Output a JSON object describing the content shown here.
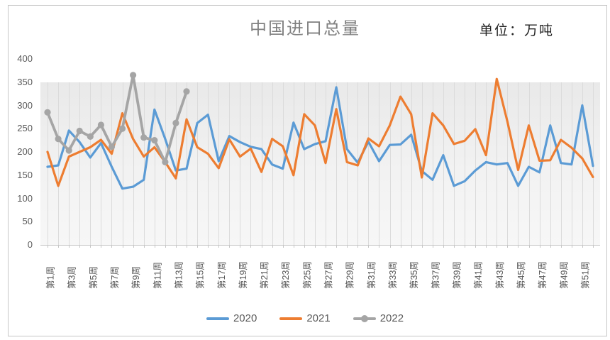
{
  "title": "中国进口总量",
  "unit_label": "单位：万吨",
  "colors": {
    "series_2020": "#5B9BD5",
    "series_2021": "#ED7D31",
    "series_2022": "#A5A5A5",
    "gridline": "#dbdbdb",
    "axis_text": "#595959",
    "title_text": "#808080"
  },
  "legend": [
    {
      "label": "2020",
      "color": "#5B9BD5",
      "marker": false
    },
    {
      "label": "2021",
      "color": "#ED7D31",
      "marker": false
    },
    {
      "label": "2022",
      "color": "#A5A5A5",
      "marker": true
    }
  ],
  "y_axis": {
    "min": 0,
    "max": 400,
    "step": 50,
    "tick_labels": [
      "400",
      "350",
      "300",
      "250",
      "200",
      "150",
      "100",
      "50",
      "0"
    ]
  },
  "x_axis": {
    "weeks_total": 52,
    "tick_labels": [
      "第1周",
      "第3周",
      "第5周",
      "第7周",
      "第9周",
      "第11周",
      "第13周",
      "第15周",
      "第17周",
      "第19周",
      "第21周",
      "第23周",
      "第25周",
      "第27周",
      "第29周",
      "第31周",
      "第33周",
      "第35周",
      "第37周",
      "第39周",
      "第41周",
      "第43周",
      "第45周",
      "第47周",
      "第49周",
      "第51周"
    ]
  },
  "chart_data": {
    "type": "line",
    "title": "中国进口总量",
    "ylabel": "万吨",
    "ylim": [
      0,
      400
    ],
    "grid": "vertical-only",
    "legend_position": "bottom",
    "x_unit": "week",
    "series": [
      {
        "name": "2020",
        "color": "#5B9BD5",
        "marker": "none",
        "values": [
          168,
          171,
          246,
          221,
          188,
          219,
          168,
          121,
          125,
          140,
          291,
          228,
          160,
          164,
          262,
          280,
          180,
          234,
          221,
          211,
          206,
          173,
          164,
          263,
          206,
          217,
          223,
          339,
          206,
          177,
          222,
          180,
          215,
          216,
          237,
          159,
          140,
          193,
          127,
          137,
          160,
          178,
          173,
          176,
          127,
          168,
          156,
          257,
          176,
          173,
          300,
          170
        ]
      },
      {
        "name": "2021",
        "color": "#ED7D31",
        "marker": "none",
        "values": [
          200,
          127,
          190,
          200,
          210,
          226,
          196,
          283,
          228,
          190,
          210,
          178,
          143,
          270,
          210,
          196,
          165,
          227,
          190,
          207,
          157,
          228,
          212,
          150,
          281,
          257,
          176,
          292,
          178,
          171,
          229,
          212,
          257,
          319,
          281,
          145,
          283,
          257,
          217,
          224,
          249,
          193,
          357,
          265,
          161,
          257,
          181,
          182,
          226,
          209,
          186,
          146
        ]
      },
      {
        "name": "2022",
        "color": "#A5A5A5",
        "marker": "circle",
        "values": [
          285,
          228,
          203,
          245,
          233,
          258,
          211,
          250,
          365,
          231,
          225,
          178,
          262,
          330
        ]
      }
    ]
  }
}
